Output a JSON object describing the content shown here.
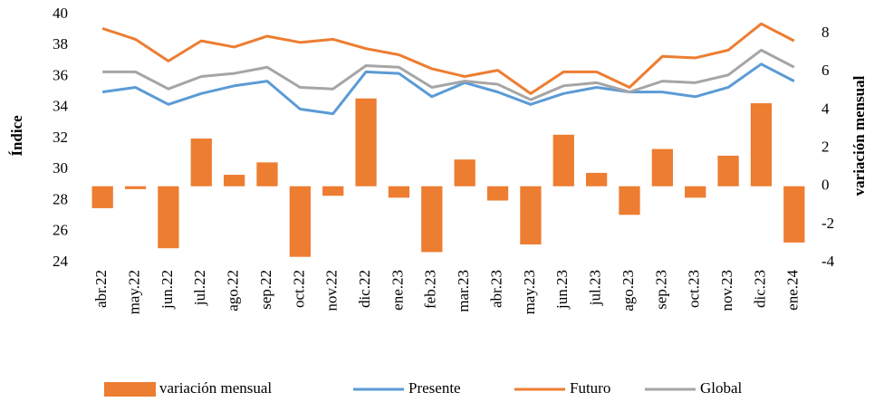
{
  "chart_data": {
    "type": "combo",
    "y_label": "Índice",
    "y2_label": "variación mensual",
    "categories": [
      "abr.22",
      "may.22",
      "jun.22",
      "jul.22",
      "ago.22",
      "sep.22",
      "oct.22",
      "nov.22",
      "dic.22",
      "ene.23",
      "feb.23",
      "mar.23",
      "abr.23",
      "may.23",
      "jun.23",
      "jul.23",
      "ago.23",
      "sep.23",
      "oct.23",
      "nov.23",
      "dic.23",
      "ene.24"
    ],
    "series": [
      {
        "name": "variación mensual",
        "type": "bar",
        "axis": "y2",
        "color": "#ED7D31",
        "values": [
          -1.15,
          -0.15,
          -3.25,
          2.5,
          0.6,
          1.25,
          -3.7,
          -0.5,
          4.6,
          -0.6,
          -3.45,
          1.4,
          -0.75,
          -3.05,
          2.7,
          0.7,
          -1.5,
          1.95,
          -0.6,
          1.6,
          4.35,
          -2.95
        ]
      },
      {
        "name": "Presente",
        "type": "line",
        "color": "#5B9BD5",
        "values": [
          35.0,
          35.3,
          34.2,
          34.9,
          35.4,
          35.7,
          33.9,
          33.6,
          36.3,
          36.2,
          34.7,
          35.6,
          35.0,
          34.2,
          34.9,
          35.3,
          35.0,
          35.0,
          34.7,
          35.3,
          36.8,
          35.7
        ]
      },
      {
        "name": "Futuro",
        "type": "line",
        "color": "#ED7D31",
        "values": [
          39.1,
          38.4,
          37.0,
          38.3,
          37.9,
          38.6,
          38.2,
          38.4,
          37.8,
          37.4,
          36.5,
          36.0,
          36.4,
          34.9,
          36.3,
          36.3,
          35.3,
          37.3,
          37.2,
          37.7,
          39.4,
          38.3
        ]
      },
      {
        "name": "Global",
        "type": "line",
        "color": "#A5A5A5",
        "values": [
          36.3,
          36.3,
          35.2,
          36.0,
          36.2,
          36.6,
          35.3,
          35.2,
          36.7,
          36.6,
          35.3,
          35.7,
          35.5,
          34.5,
          35.4,
          35.6,
          35.0,
          35.7,
          35.6,
          36.1,
          37.7,
          36.6
        ]
      }
    ],
    "ylim": [
      24,
      40
    ],
    "yticks": [
      24,
      26,
      28,
      30,
      32,
      34,
      36,
      38,
      40
    ],
    "y2lim": [
      -4,
      9
    ],
    "y2ticks": [
      -4,
      -2,
      0,
      2,
      4,
      6,
      8
    ],
    "grid": false,
    "legend": "bottom"
  }
}
